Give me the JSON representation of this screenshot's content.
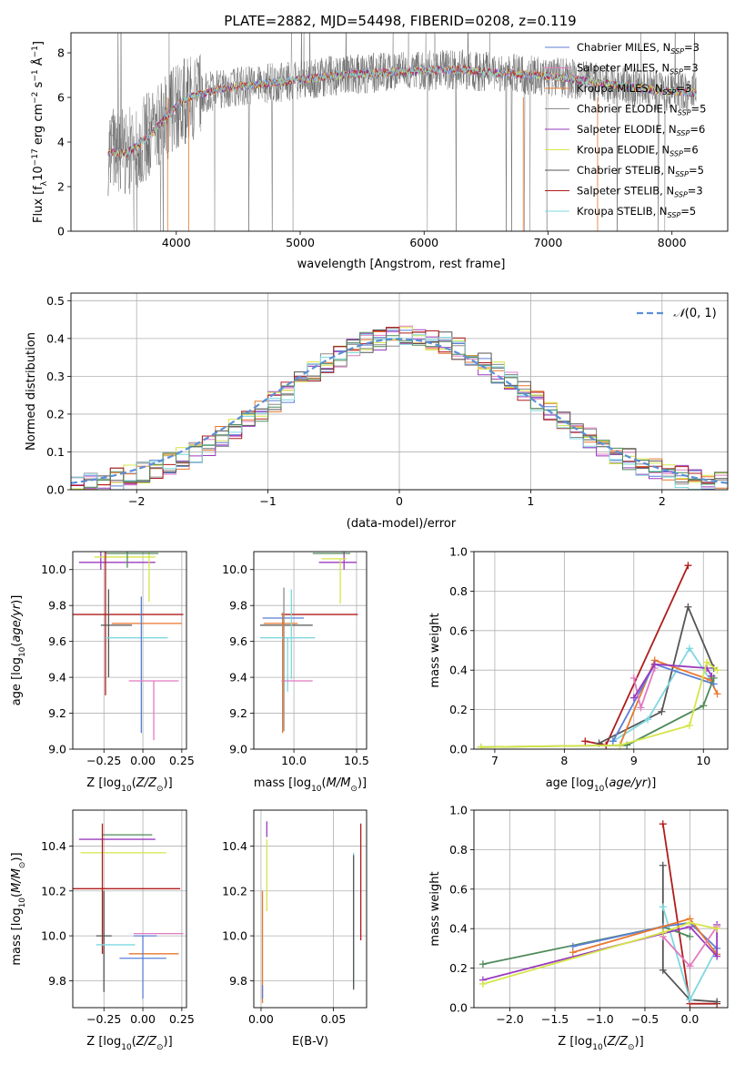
{
  "figure": {
    "title": "PLATE=2882, MJD=54498, FIBERID=0208, z=0.119"
  },
  "colors": {
    "Chabrier MILES": "#5b7fd6",
    "Salpeter MILES": "#e17bc1",
    "Kroupa MILES": "#e8772e",
    "Chabrier ELODIE": "#8c8c8c",
    "Salpeter ELODIE": "#9a3bbf",
    "Kroupa ELODIE": "#d6e54a",
    "Chabrier STELIB": "#555555",
    "Salpeter STELIB": "#b01c1c",
    "Kroupa STELIB": "#7fd8e0",
    "extra green": "#4f8a5a",
    "normal": "#5b8fd6"
  },
  "chart_data": [
    {
      "id": "spectrum",
      "type": "line",
      "xlabel": "wavelength [Angstrom, rest frame]",
      "ylabel": "Flux [f_λ 10^-17 erg cm^-2 s^-1 Å^-1]",
      "xlim": [
        3150,
        8450
      ],
      "ylim": [
        0,
        8.9
      ],
      "xticks": [
        4000,
        5000,
        6000,
        7000,
        8000
      ],
      "yticks": [
        0,
        2,
        4,
        6,
        8
      ],
      "continuum": {
        "x": [
          3450,
          3600,
          3700,
          3800,
          3900,
          4000,
          4100,
          4300,
          4500,
          4700,
          5000,
          5300,
          5600,
          6000,
          6300,
          6600,
          6900,
          7100,
          7300,
          7500,
          7700,
          7900,
          8200
        ],
        "y": [
          3.55,
          3.5,
          3.9,
          4.4,
          5.0,
          5.6,
          6.0,
          6.3,
          6.5,
          6.6,
          6.8,
          7.0,
          7.1,
          7.2,
          7.25,
          7.1,
          7.0,
          6.9,
          6.75,
          6.6,
          6.45,
          6.3,
          6.2
        ]
      },
      "legend": [
        {
          "label": "Chabrier MILES, N",
          "sub": "SSP",
          "suffix": "=3",
          "color_key": "Chabrier MILES"
        },
        {
          "label": "Salpeter MILES, N",
          "sub": "SSP",
          "suffix": "=3",
          "color_key": "Salpeter MILES"
        },
        {
          "label": "Kroupa MILES, N",
          "sub": "SSP",
          "suffix": "=3",
          "color_key": "Kroupa MILES"
        },
        {
          "label": "Chabrier ELODIE, N",
          "sub": "SSP",
          "suffix": "=5",
          "color_key": "Chabrier ELODIE"
        },
        {
          "label": "Salpeter ELODIE, N",
          "sub": "SSP",
          "suffix": "=6",
          "color_key": "Salpeter ELODIE"
        },
        {
          "label": "Kroupa ELODIE, N",
          "sub": "SSP",
          "suffix": "=6",
          "color_key": "Kroupa ELODIE"
        },
        {
          "label": "Chabrier STELIB, N",
          "sub": "SSP",
          "suffix": "=5",
          "color_key": "Chabrier STELIB"
        },
        {
          "label": "Salpeter STELIB, N",
          "sub": "SSP",
          "suffix": "=3",
          "color_key": "Salpeter STELIB"
        },
        {
          "label": "Kroupa STELIB, N",
          "sub": "SSP",
          "suffix": "=5",
          "color_key": "Kroupa STELIB"
        }
      ],
      "legend_position": "right"
    },
    {
      "id": "residuals",
      "type": "line",
      "xlabel": "(data-model)/error",
      "ylabel": "Normed distribution",
      "xlim": [
        -2.5,
        2.5
      ],
      "ylim": [
        0,
        0.52
      ],
      "xticks": [
        -2,
        -1,
        0,
        1,
        2
      ],
      "yticks": [
        0.0,
        0.1,
        0.2,
        0.3,
        0.4,
        0.5
      ],
      "grid": true,
      "bin_width": 0.1,
      "normal_label": "N(0,1)",
      "legend_position": "top-right"
    },
    {
      "id": "age-vs-Z",
      "type": "scatter",
      "xlabel": "Z [log10(Z/Z⊙)]",
      "ylabel": "age  [log10(age/yr)]",
      "xlim": [
        -0.45,
        0.28
      ],
      "ylim": [
        9.0,
        10.1
      ],
      "xticks": [
        -0.25,
        0.0,
        0.25
      ],
      "yticks": [
        9.0,
        9.2,
        9.4,
        9.6,
        9.8,
        10.0
      ],
      "grid": true,
      "points": [
        {
          "c": "Chabrier MILES",
          "x": 0.05,
          "y": 9.9,
          "x_err": [
            0.0,
            0.0
          ],
          "y_err": [
            0.0,
            0.0
          ]
        },
        {
          "c": "Salpeter ELODIE",
          "x": -0.27,
          "y": 10.04,
          "x_err": [
            0.14,
            0.35
          ],
          "y_err": [
            0.04,
            0.06
          ]
        },
        {
          "c": "Kroupa ELODIE",
          "x": 0.04,
          "y": 10.07,
          "x_err": [
            0.35,
            0.04
          ],
          "y_err": [
            0.25,
            0.05
          ]
        },
        {
          "c": "extra green",
          "x": -0.1,
          "y": 10.09,
          "x_err": [
            0.14,
            0.2
          ],
          "y_err": [
            0.08,
            0.05
          ]
        },
        {
          "c": "Salpeter STELIB",
          "x": -0.24,
          "y": 9.75,
          "x_err": [
            0.3,
            0.5
          ],
          "y_err": [
            0.45,
            0.4
          ]
        },
        {
          "c": "Chabrier STELIB",
          "x": -0.22,
          "y": 9.69,
          "x_err": [
            0.05,
            0.15
          ],
          "y_err": [
            0.29,
            0.2
          ]
        },
        {
          "c": "Kroupa MILES",
          "x": -0.05,
          "y": 9.7,
          "x_err": [
            0.15,
            0.3
          ],
          "y_err": [
            0.0,
            0.0
          ]
        },
        {
          "c": "Kroupa STELIB",
          "x": -0.24,
          "y": 9.62,
          "x_err": [
            0.0,
            0.4
          ],
          "y_err": [
            0.0,
            0.0
          ]
        },
        {
          "c": "Chabrier MILES",
          "x": -0.01,
          "y": 9.6,
          "x_err": [
            0.0,
            0.0
          ],
          "y_err": [
            0.51,
            0.25
          ]
        },
        {
          "c": "Salpeter MILES",
          "x": 0.07,
          "y": 9.38,
          "x_err": [
            0.16,
            0.16
          ],
          "y_err": [
            0.33,
            0.0
          ]
        }
      ]
    },
    {
      "id": "age-vs-mass",
      "type": "scatter",
      "xlabel": "mass [log10(M/M⊙)]",
      "ylabel": "",
      "xlim": [
        9.68,
        10.58
      ],
      "ylim": [
        9.0,
        10.1
      ],
      "xticks": [
        10.0,
        10.5
      ],
      "yticks": [
        9.0,
        9.2,
        9.4,
        9.6,
        9.8,
        10.0
      ],
      "grid": true,
      "points": [
        {
          "c": "Salpeter ELODIE",
          "x": 10.4,
          "y": 10.04,
          "x_err": [
            0.2,
            0.1
          ],
          "y_err": [
            0.04,
            0.12
          ]
        },
        {
          "c": "extra green",
          "x": 10.3,
          "y": 10.09,
          "x_err": [
            0.15,
            0.15
          ],
          "y_err": [
            0.0,
            0.0
          ]
        },
        {
          "c": "Kroupa ELODIE",
          "x": 10.37,
          "y": 10.06,
          "x_err": [
            0.15,
            0.05
          ],
          "y_err": [
            0.25,
            0.0
          ]
        },
        {
          "c": "Salpeter STELIB",
          "x": 10.18,
          "y": 9.75,
          "x_err": [
            0.28,
            0.33
          ],
          "y_err": [
            0.0,
            0.0
          ]
        },
        {
          "c": "Chabrier STELIB",
          "x": 9.93,
          "y": 9.69,
          "x_err": [
            0.2,
            0.22
          ],
          "y_err": [
            0.0,
            0.0
          ]
        },
        {
          "c": "Kroupa MILES",
          "x": 9.91,
          "y": 9.7,
          "x_err": [
            0.15,
            0.12
          ],
          "y_err": [
            0.61,
            0.06
          ]
        },
        {
          "c": "Kroupa STELIB",
          "x": 9.95,
          "y": 9.62,
          "x_err": [
            0.22,
            0.22
          ],
          "y_err": [
            0.3,
            0.0
          ]
        },
        {
          "c": "Chabrier MILES",
          "x": 9.9,
          "y": 9.73,
          "x_err": [
            0.15,
            0.18
          ],
          "y_err": [
            0.0,
            0.0
          ]
        },
        {
          "c": "Salpeter MILES",
          "x": 10.05,
          "y": 9.38,
          "x_err": [
            0.15,
            0.1
          ],
          "y_err": [
            0.0,
            0.0
          ]
        },
        {
          "c": "Chabrier ELODIE",
          "x": 9.92,
          "y": 9.7,
          "x_err": [
            0.0,
            0.0
          ],
          "y_err": [
            0.6,
            0.2
          ]
        },
        {
          "c": "Kroupa STELIB",
          "x": 9.98,
          "y": 9.64,
          "x_err": [
            0.0,
            0.0
          ],
          "y_err": [
            0.25,
            0.25
          ]
        }
      ]
    },
    {
      "id": "mass-weight-vs-age",
      "type": "line",
      "xlabel": "age  [log10(age/yr)]",
      "ylabel": "mass weight",
      "xlim": [
        6.7,
        10.35
      ],
      "ylim": [
        0,
        1.0
      ],
      "xticks": [
        7,
        8,
        9,
        10
      ],
      "yticks": [
        0.0,
        0.2,
        0.4,
        0.6,
        0.8,
        1.0
      ],
      "grid": true,
      "series": [
        {
          "c": "Salpeter STELIB",
          "x": [
            8.3,
            8.6,
            9.78
          ],
          "y": [
            0.04,
            0.02,
            0.93
          ]
        },
        {
          "c": "Chabrier STELIB",
          "x": [
            8.5,
            9.4,
            9.78,
            10.15
          ],
          "y": [
            0.03,
            0.19,
            0.72,
            0.41
          ]
        },
        {
          "c": "Kroupa STELIB",
          "x": [
            8.7,
            9.2,
            9.8,
            10.1
          ],
          "y": [
            0.04,
            0.15,
            0.51,
            0.35
          ]
        },
        {
          "c": "Kroupa MILES",
          "x": [
            8.8,
            9.3,
            10.1,
            10.2
          ],
          "y": [
            0.02,
            0.45,
            0.35,
            0.28
          ]
        },
        {
          "c": "Chabrier MILES",
          "x": [
            8.7,
            9.3,
            10.15
          ],
          "y": [
            0.04,
            0.43,
            0.33
          ]
        },
        {
          "c": "Salpeter MILES",
          "x": [
            9.0,
            9.1,
            9.3
          ],
          "y": [
            0.36,
            0.21,
            0.41
          ]
        },
        {
          "c": "Salpeter ELODIE",
          "x": [
            9.0,
            9.3,
            10.05,
            10.12
          ],
          "y": [
            0.26,
            0.43,
            0.41,
            0.37
          ]
        },
        {
          "c": "extra green",
          "x": [
            6.8,
            8.9,
            10.0,
            10.15
          ],
          "y": [
            0.01,
            0.02,
            0.22,
            0.36
          ]
        },
        {
          "c": "Kroupa ELODIE",
          "x": [
            6.8,
            8.8,
            9.8,
            10.05,
            10.2
          ],
          "y": [
            0.01,
            0.02,
            0.12,
            0.44,
            0.4
          ]
        }
      ]
    },
    {
      "id": "mass-vs-Z",
      "type": "scatter",
      "xlabel": "Z [log10(Z/Z⊙)]",
      "ylabel": "mass [log10(M/M⊙)]",
      "xlim": [
        -0.45,
        0.28
      ],
      "ylim": [
        9.68,
        10.56
      ],
      "xticks": [
        -0.25,
        0.0,
        0.25
      ],
      "yticks": [
        9.8,
        10.0,
        10.2,
        10.4
      ],
      "grid": true,
      "points": [
        {
          "c": "Salpeter ELODIE",
          "x": -0.27,
          "y": 10.43,
          "x_err": [
            0.14,
            0.35
          ],
          "y_err": [
            0.0,
            0.0
          ]
        },
        {
          "c": "extra green",
          "x": -0.1,
          "y": 10.45,
          "x_err": [
            0.16,
            0.16
          ],
          "y_err": [
            0.0,
            0.0
          ]
        },
        {
          "c": "Kroupa ELODIE",
          "x": -0.2,
          "y": 10.37,
          "x_err": [
            0.2,
            0.35
          ],
          "y_err": [
            0.0,
            0.0
          ]
        },
        {
          "c": "Salpeter STELIB",
          "x": -0.26,
          "y": 10.21,
          "x_err": [
            0.27,
            0.5
          ],
          "y_err": [
            0.29,
            0.29
          ]
        },
        {
          "c": "Chabrier STELIB",
          "x": -0.25,
          "y": 10.0,
          "x_err": [
            0.05,
            0.05
          ],
          "y_err": [
            0.25,
            0.2
          ]
        },
        {
          "c": "Kroupa MILES",
          "x": 0.07,
          "y": 9.92,
          "x_err": [
            0.16,
            0.16
          ],
          "y_err": [
            0.0,
            0.0
          ]
        },
        {
          "c": "Salpeter MILES",
          "x": 0.1,
          "y": 10.01,
          "x_err": [
            0.16,
            0.16
          ],
          "y_err": [
            0.0,
            0.0
          ]
        },
        {
          "c": "Chabrier MILES",
          "x": -0.01,
          "y": 10.0,
          "x_err": [
            0.05,
            0.1
          ],
          "y_err": [
            0.0,
            0.0
          ]
        },
        {
          "c": "Kroupa STELIB",
          "x": -0.25,
          "y": 9.96,
          "x_err": [
            0.05,
            0.2
          ],
          "y_err": [
            0.0,
            0.0
          ]
        },
        {
          "c": "Chabrier MILES",
          "x": 0.0,
          "y": 9.9,
          "x_err": [
            0.15,
            0.15
          ],
          "y_err": [
            0.18,
            0.1
          ]
        }
      ]
    },
    {
      "id": "mass-vs-EBV",
      "type": "scatter",
      "xlabel": "E(B-V)",
      "ylabel": "",
      "xlim": [
        -0.005,
        0.073
      ],
      "ylim": [
        9.68,
        10.56
      ],
      "xticks": [
        0.0,
        0.05
      ],
      "yticks": [
        9.8,
        10.0,
        10.2,
        10.4
      ],
      "grid": true,
      "points": [
        {
          "c": "Kroupa MILES",
          "x": 0.001,
          "y": 9.95,
          "x_err": [
            0.0,
            0.0
          ],
          "y_err": [
            0.25,
            0.25
          ]
        },
        {
          "c": "Chabrier MILES",
          "x": 0.001,
          "y": 9.78,
          "x_err": [
            0.0,
            0.0
          ],
          "y_err": [
            0.06,
            0.0
          ]
        },
        {
          "c": "Salpeter ELODIE",
          "x": 0.004,
          "y": 10.48,
          "x_err": [
            0.0,
            0.0
          ],
          "y_err": [
            0.04,
            0.03
          ]
        },
        {
          "c": "Kroupa ELODIE",
          "x": 0.004,
          "y": 10.27,
          "x_err": [
            0.0,
            0.0
          ],
          "y_err": [
            0.16,
            0.16
          ]
        },
        {
          "c": "Kroupa STELIB",
          "x": 0.064,
          "y": 10.07,
          "x_err": [
            0.0,
            0.0
          ],
          "y_err": [
            0.3,
            0.3
          ]
        },
        {
          "c": "Chabrier STELIB",
          "x": 0.064,
          "y": 10.06,
          "x_err": [
            0.0,
            0.0
          ],
          "y_err": [
            0.3,
            0.3
          ]
        },
        {
          "c": "Salpeter STELIB",
          "x": 0.069,
          "y": 10.24,
          "x_err": [
            0.0,
            0.0
          ],
          "y_err": [
            0.26,
            0.26
          ]
        }
      ]
    },
    {
      "id": "mass-weight-vs-Z",
      "type": "line",
      "xlabel": "Z [log10(Z/Z⊙)]",
      "ylabel": "mass weight",
      "xlim": [
        -2.4,
        0.42
      ],
      "ylim": [
        0,
        1.0
      ],
      "xticks": [
        -2.0,
        -1.5,
        -1.0,
        -0.5,
        0.0
      ],
      "yticks": [
        0.0,
        0.2,
        0.4,
        0.6,
        0.8,
        1.0
      ],
      "grid": true,
      "series": [
        {
          "c": "Salpeter STELIB",
          "x": [
            -0.3,
            0.0,
            0.3
          ],
          "y": [
            0.93,
            0.02,
            0.02
          ]
        },
        {
          "c": "Chabrier STELIB",
          "x": [
            -0.3,
            -0.3,
            0.0,
            0.3
          ],
          "y": [
            0.72,
            0.19,
            0.04,
            0.03
          ]
        },
        {
          "c": "Kroupa STELIB",
          "x": [
            -0.3,
            0.0,
            0.3
          ],
          "y": [
            0.51,
            0.04,
            0.3
          ]
        },
        {
          "c": "extra green",
          "x": [
            -2.3,
            -0.3,
            0.0
          ],
          "y": [
            0.22,
            0.41,
            0.36
          ]
        },
        {
          "c": "Chabrier MILES",
          "x": [
            -1.3,
            -0.3,
            0.0,
            0.3
          ],
          "y": [
            0.31,
            0.41,
            0.43,
            0.3
          ]
        },
        {
          "c": "Kroupa MILES",
          "x": [
            -1.3,
            0.0,
            0.3
          ],
          "y": [
            0.28,
            0.45,
            0.27
          ]
        },
        {
          "c": "Salpeter ELODIE",
          "x": [
            -2.3,
            0.0,
            0.3,
            0.3
          ],
          "y": [
            0.14,
            0.41,
            0.26,
            0.42
          ]
        },
        {
          "c": "Salpeter MILES",
          "x": [
            -0.3,
            0.0,
            0.3
          ],
          "y": [
            0.36,
            0.21,
            0.41
          ]
        },
        {
          "c": "Kroupa ELODIE",
          "x": [
            -2.3,
            -0.3,
            0.0,
            0.3
          ],
          "y": [
            0.12,
            0.38,
            0.43,
            0.4
          ]
        }
      ]
    }
  ]
}
